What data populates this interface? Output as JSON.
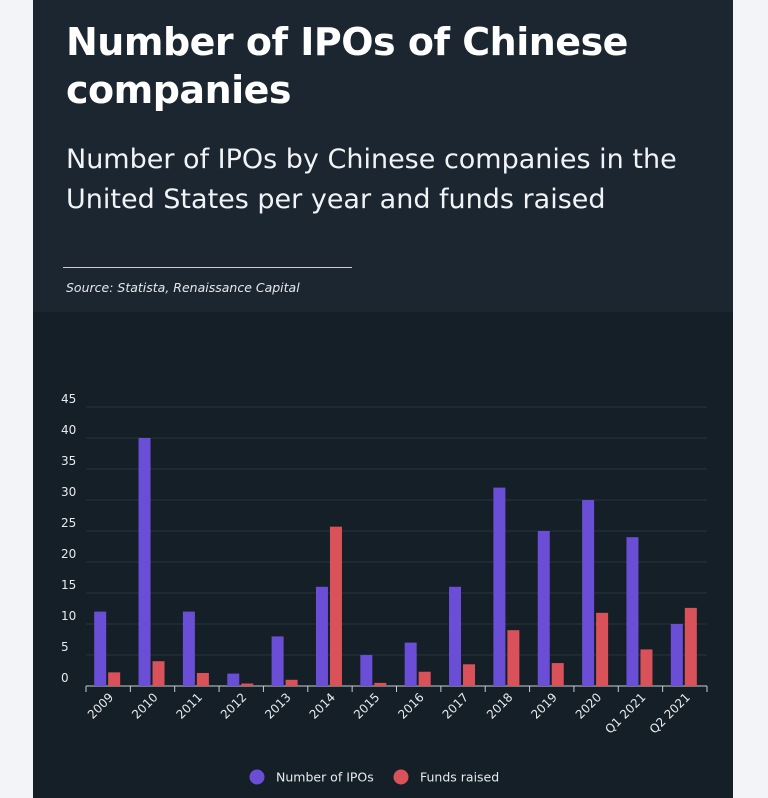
{
  "header": {
    "title": "Number of IPOs of Chinese companies",
    "subtitle": "Number of IPOs by Chinese companies in the United States per year and funds raised",
    "source": "Source: Statista,  Renaissance Capital"
  },
  "chart_data": {
    "type": "bar",
    "categories": [
      "2009",
      "2010",
      "2011",
      "2012",
      "2013",
      "2014",
      "2015",
      "2016",
      "2017",
      "2018",
      "2019",
      "2020",
      "Q1 2021",
      "Q2 2021"
    ],
    "series": [
      {
        "name": "Number of IPOs",
        "color": "#6a4fd6",
        "values": [
          12,
          40,
          12,
          2,
          8,
          16,
          5,
          7,
          16,
          32,
          25,
          30,
          24,
          10
        ]
      },
      {
        "name": "Funds raised",
        "color": "#d9525a",
        "values": [
          2.2,
          4,
          2.1,
          0.4,
          1,
          25.7,
          0.5,
          2.3,
          3.5,
          9,
          3.7,
          11.8,
          5.9,
          12.6
        ]
      }
    ],
    "ylim": [
      0,
      45
    ],
    "yticks": [
      0,
      5,
      10,
      15,
      20,
      25,
      30,
      35,
      40,
      45
    ],
    "grid": true,
    "legend_position": "bottom-center",
    "xlabel": "",
    "ylabel": ""
  }
}
